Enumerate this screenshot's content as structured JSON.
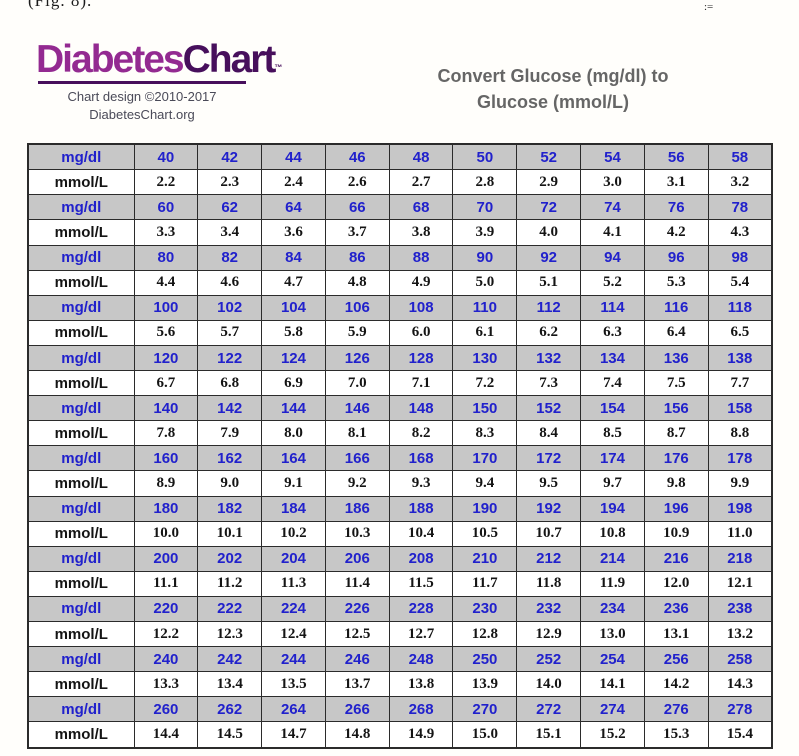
{
  "page": {
    "fig_caption": "(Fig. 8).",
    "top_right_mark": ":=",
    "background_color": "#fffefb"
  },
  "logo": {
    "brand_part1": "Diabetes",
    "brand_part2": "Chart",
    "trademark": "™",
    "tagline_line1": "Chart design ©2010-2017",
    "tagline_line2": "DiabetesChart.org",
    "brand_color_primary": "#932a91",
    "brand_color_secondary": "#470f5c"
  },
  "header": {
    "title_line1": "Convert Glucose (mg/dl) to",
    "title_line2": "Glucose (mmol/L)",
    "title_color": "#666666"
  },
  "table_style": {
    "mgdl_row_background": "#c7c7c7",
    "mgdl_text_color": "#2121cc",
    "mmol_row_background": "#ffffff",
    "mmol_text_color": "#141414",
    "border_color": "#2b2b2b"
  },
  "chart_data": {
    "type": "table",
    "title": "Convert Glucose (mg/dl) to Glucose (mmol/L)",
    "unit_row_labels": [
      "mg/dl",
      "mmol/L"
    ],
    "row_pairs": [
      {
        "mgdl_label": "mg/dl",
        "mmol_label": "mmol/L",
        "mgdl": [
          "40",
          "42",
          "44",
          "46",
          "48",
          "50",
          "52",
          "54",
          "56",
          "58"
        ],
        "mmol": [
          "2.2",
          "2.3",
          "2.4",
          "2.6",
          "2.7",
          "2.8",
          "2.9",
          "3.0",
          "3.1",
          "3.2"
        ]
      },
      {
        "mgdl_label": "mg/dl",
        "mmol_label": "mmol/L",
        "mgdl": [
          "60",
          "62",
          "64",
          "66",
          "68",
          "70",
          "72",
          "74",
          "76",
          "78"
        ],
        "mmol": [
          "3.3",
          "3.4",
          "3.6",
          "3.7",
          "3.8",
          "3.9",
          "4.0",
          "4.1",
          "4.2",
          "4.3"
        ]
      },
      {
        "mgdl_label": "mg/dl",
        "mmol_label": "mmol/L",
        "mgdl": [
          "80",
          "82",
          "84",
          "86",
          "88",
          "90",
          "92",
          "94",
          "96",
          "98"
        ],
        "mmol": [
          "4.4",
          "4.6",
          "4.7",
          "4.8",
          "4.9",
          "5.0",
          "5.1",
          "5.2",
          "5.3",
          "5.4"
        ]
      },
      {
        "mgdl_label": "mg/dl",
        "mmol_label": "mmol/L",
        "mgdl": [
          "100",
          "102",
          "104",
          "106",
          "108",
          "110",
          "112",
          "114",
          "116",
          "118"
        ],
        "mmol": [
          "5.6",
          "5.7",
          "5.8",
          "5.9",
          "6.0",
          "6.1",
          "6.2",
          "6.3",
          "6.4",
          "6.5"
        ]
      },
      {
        "mgdl_label": "mg/dl",
        "mmol_label": "mmol/L",
        "mgdl": [
          "120",
          "122",
          "124",
          "126",
          "128",
          "130",
          "132",
          "134",
          "136",
          "138"
        ],
        "mmol": [
          "6.7",
          "6.8",
          "6.9",
          "7.0",
          "7.1",
          "7.2",
          "7.3",
          "7.4",
          "7.5",
          "7.7"
        ]
      },
      {
        "mgdl_label": "mg/dl",
        "mmol_label": "mmol/L",
        "mgdl": [
          "140",
          "142",
          "144",
          "146",
          "148",
          "150",
          "152",
          "154",
          "156",
          "158"
        ],
        "mmol": [
          "7.8",
          "7.9",
          "8.0",
          "8.1",
          "8.2",
          "8.3",
          "8.4",
          "8.5",
          "8.7",
          "8.8"
        ]
      },
      {
        "mgdl_label": "mg/dl",
        "mmol_label": "mmol/L",
        "mgdl": [
          "160",
          "162",
          "164",
          "166",
          "168",
          "170",
          "172",
          "174",
          "176",
          "178"
        ],
        "mmol": [
          "8.9",
          "9.0",
          "9.1",
          "9.2",
          "9.3",
          "9.4",
          "9.5",
          "9.7",
          "9.8",
          "9.9"
        ]
      },
      {
        "mgdl_label": "mg/dl",
        "mmol_label": "mmol/L",
        "mgdl": [
          "180",
          "182",
          "184",
          "186",
          "188",
          "190",
          "192",
          "194",
          "196",
          "198"
        ],
        "mmol": [
          "10.0",
          "10.1",
          "10.2",
          "10.3",
          "10.4",
          "10.5",
          "10.7",
          "10.8",
          "10.9",
          "11.0"
        ]
      },
      {
        "mgdl_label": "mg/dl",
        "mmol_label": "mmol/L",
        "mgdl": [
          "200",
          "202",
          "204",
          "206",
          "208",
          "210",
          "212",
          "214",
          "216",
          "218"
        ],
        "mmol": [
          "11.1",
          "11.2",
          "11.3",
          "11.4",
          "11.5",
          "11.7",
          "11.8",
          "11.9",
          "12.0",
          "12.1"
        ]
      },
      {
        "mgdl_label": "mg/dl",
        "mmol_label": "mmol/L",
        "mgdl": [
          "220",
          "222",
          "224",
          "226",
          "228",
          "230",
          "232",
          "234",
          "236",
          "238"
        ],
        "mmol": [
          "12.2",
          "12.3",
          "12.4",
          "12.5",
          "12.7",
          "12.8",
          "12.9",
          "13.0",
          "13.1",
          "13.2"
        ]
      },
      {
        "mgdl_label": "mg/dl",
        "mmol_label": "mmol/L",
        "mgdl": [
          "240",
          "242",
          "244",
          "246",
          "248",
          "250",
          "252",
          "254",
          "256",
          "258"
        ],
        "mmol": [
          "13.3",
          "13.4",
          "13.5",
          "13.7",
          "13.8",
          "13.9",
          "14.0",
          "14.1",
          "14.2",
          "14.3"
        ]
      },
      {
        "mgdl_label": "mg/dl",
        "mmol_label": "mmol/L",
        "mgdl": [
          "260",
          "262",
          "264",
          "266",
          "268",
          "270",
          "272",
          "274",
          "276",
          "278"
        ],
        "mmol": [
          "14.4",
          "14.5",
          "14.7",
          "14.8",
          "14.9",
          "15.0",
          "15.1",
          "15.2",
          "15.3",
          "15.4"
        ]
      }
    ]
  }
}
